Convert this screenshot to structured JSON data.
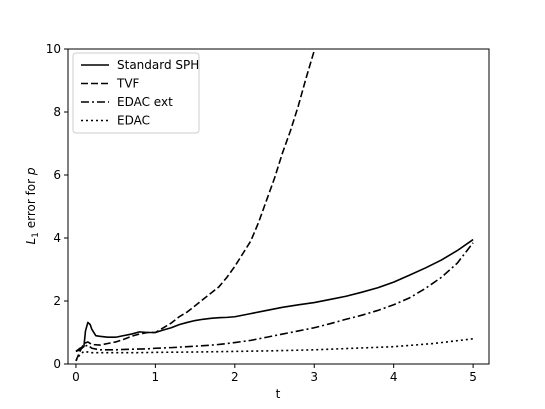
{
  "chart_data": {
    "type": "line",
    "xlabel": "t",
    "ylabel": "L1 error for p",
    "ylabel_main": "L",
    "ylabel_sub": "1",
    "ylabel_rest": " error for ",
    "ylabel_var": "p",
    "xlim": [
      -0.1,
      5.2
    ],
    "ylim": [
      0,
      10
    ],
    "xticks": [
      0,
      1,
      2,
      3,
      4,
      5
    ],
    "yticks": [
      0,
      2,
      4,
      6,
      8,
      10
    ],
    "grid": false,
    "legend_position": "top-left",
    "series": [
      {
        "name": "Standard SPH",
        "style": "solid",
        "color": "#000000",
        "x": [
          0,
          0.05,
          0.1,
          0.12,
          0.15,
          0.18,
          0.2,
          0.25,
          0.3,
          0.4,
          0.5,
          0.6,
          0.7,
          0.8,
          0.9,
          1.0,
          1.1,
          1.2,
          1.3,
          1.4,
          1.5,
          1.6,
          1.7,
          1.8,
          1.9,
          2.0,
          2.2,
          2.4,
          2.6,
          2.8,
          3.0,
          3.2,
          3.4,
          3.6,
          3.8,
          4.0,
          4.2,
          4.4,
          4.6,
          4.8,
          5.0
        ],
        "y": [
          0.4,
          0.45,
          0.55,
          1.05,
          1.32,
          1.25,
          1.1,
          0.9,
          0.88,
          0.85,
          0.85,
          0.9,
          0.95,
          1.02,
          1.0,
          1.0,
          1.08,
          1.15,
          1.25,
          1.32,
          1.38,
          1.42,
          1.45,
          1.47,
          1.48,
          1.5,
          1.6,
          1.7,
          1.8,
          1.88,
          1.95,
          2.05,
          2.15,
          2.28,
          2.42,
          2.6,
          2.82,
          3.05,
          3.3,
          3.6,
          3.95
        ]
      },
      {
        "name": "TVF",
        "style": "dashed",
        "color": "#000000",
        "x": [
          0,
          0.05,
          0.1,
          0.15,
          0.2,
          0.3,
          0.4,
          0.5,
          0.6,
          0.7,
          0.8,
          0.9,
          1.0,
          1.1,
          1.2,
          1.3,
          1.4,
          1.5,
          1.6,
          1.7,
          1.8,
          1.9,
          2.0,
          2.1,
          2.2,
          2.3,
          2.4,
          2.5,
          2.6,
          2.7,
          2.8,
          2.9,
          3.0,
          3.02
        ],
        "y": [
          0.1,
          0.4,
          0.65,
          0.7,
          0.62,
          0.6,
          0.65,
          0.7,
          0.78,
          0.88,
          0.95,
          1.0,
          1.0,
          1.15,
          1.3,
          1.5,
          1.65,
          1.85,
          2.05,
          2.25,
          2.45,
          2.75,
          3.1,
          3.5,
          3.9,
          4.5,
          5.2,
          5.9,
          6.7,
          7.4,
          8.2,
          9.1,
          9.95,
          10.2
        ]
      },
      {
        "name": "EDAC ext",
        "style": "dashdot",
        "color": "#000000",
        "x": [
          0,
          0.05,
          0.1,
          0.15,
          0.2,
          0.3,
          0.5,
          0.7,
          0.9,
          1.0,
          1.2,
          1.4,
          1.6,
          1.8,
          2.0,
          2.2,
          2.4,
          2.6,
          2.8,
          3.0,
          3.2,
          3.4,
          3.6,
          3.8,
          4.0,
          4.2,
          4.4,
          4.6,
          4.8,
          5.0
        ],
        "y": [
          0.4,
          0.5,
          0.55,
          0.6,
          0.5,
          0.45,
          0.45,
          0.47,
          0.48,
          0.5,
          0.52,
          0.55,
          0.58,
          0.62,
          0.68,
          0.75,
          0.85,
          0.95,
          1.05,
          1.15,
          1.28,
          1.42,
          1.55,
          1.7,
          1.88,
          2.1,
          2.4,
          2.75,
          3.2,
          3.85
        ]
      },
      {
        "name": "EDAC",
        "style": "dotted",
        "color": "#000000",
        "x": [
          0,
          0.05,
          0.1,
          0.15,
          0.2,
          0.4,
          0.6,
          0.8,
          1.0,
          1.5,
          2.0,
          2.5,
          3.0,
          3.5,
          4.0,
          4.5,
          5.0
        ],
        "y": [
          0.1,
          0.3,
          0.4,
          0.38,
          0.36,
          0.36,
          0.36,
          0.36,
          0.37,
          0.38,
          0.4,
          0.42,
          0.45,
          0.5,
          0.55,
          0.65,
          0.8
        ]
      }
    ]
  }
}
